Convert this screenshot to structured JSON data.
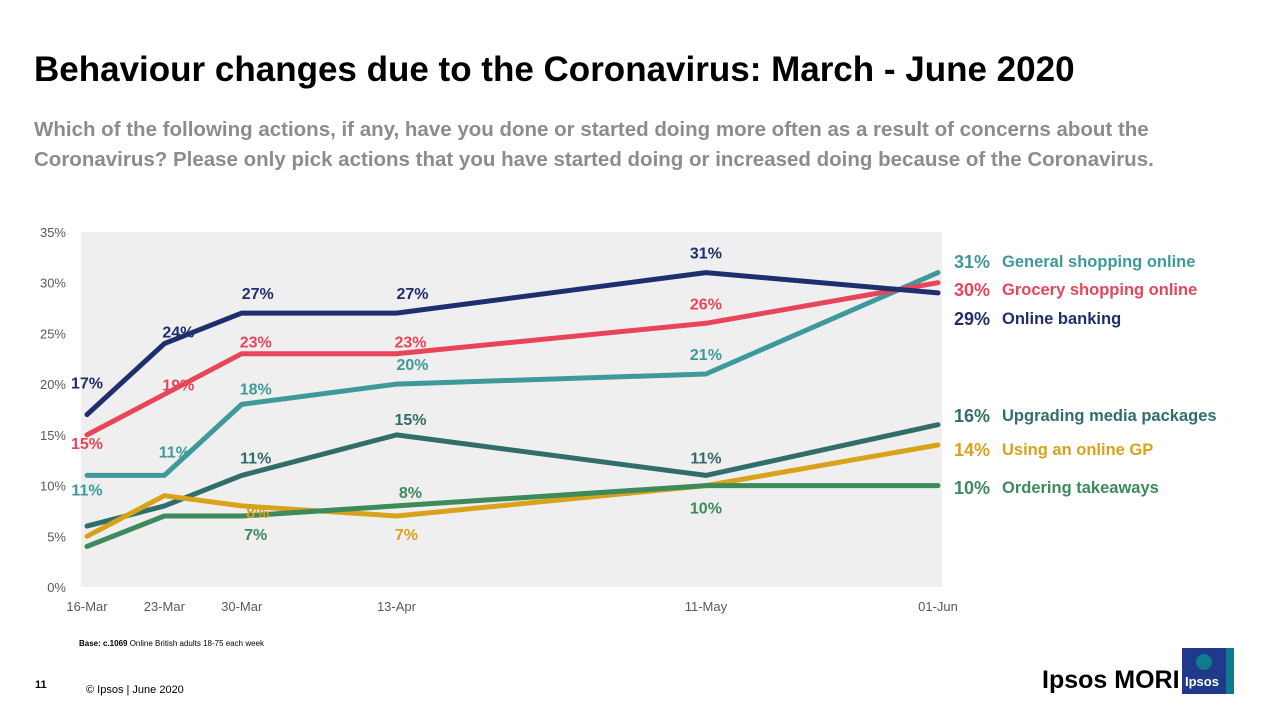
{
  "header": {
    "title": "Behaviour changes due to the Coronavirus: March -  June 2020",
    "subtitle": "Which of the following actions, if any, have you done or started doing more often as a result of concerns about the Coronavirus? Please only pick actions that you have started doing or increased doing because of the Coronavirus."
  },
  "chart_data": {
    "type": "line",
    "title": "",
    "xlabel": "",
    "ylabel": "",
    "x": [
      "16-Mar",
      "23-Mar",
      "30-Mar",
      "13-Apr",
      "11-May",
      "01-Jun"
    ],
    "x_days": [
      0,
      7,
      14,
      28,
      56,
      77
    ],
    "ylim": [
      0,
      35
    ],
    "yticks": [
      0,
      5,
      10,
      15,
      20,
      25,
      30,
      35
    ],
    "y_tick_labels": [
      "0%",
      "5%",
      "10%",
      "15%",
      "20%",
      "25%",
      "30%",
      "35%"
    ],
    "grid": false,
    "legend_position": "right",
    "series": [
      {
        "name": "General shopping online",
        "color": "#3e9a9a",
        "values": [
          11,
          11,
          18,
          20,
          21,
          31
        ],
        "point_labels": [
          "11%",
          "11%",
          "18%",
          "20%",
          "21%",
          ""
        ],
        "end_label": "31%"
      },
      {
        "name": "Grocery shopping online",
        "color": "#e8455a",
        "values": [
          15,
          19,
          23,
          23,
          26,
          30
        ],
        "point_labels": [
          "15%",
          "19%",
          "23%",
          "23%",
          "26%",
          ""
        ],
        "end_label": "30%"
      },
      {
        "name": "Online banking",
        "color": "#1f2f6e",
        "values": [
          17,
          24,
          27,
          27,
          31,
          29
        ],
        "point_labels": [
          "17%",
          "24%",
          "27%",
          "27%",
          "31%",
          ""
        ],
        "end_label": "29%"
      },
      {
        "name": "Upgrading media packages",
        "color": "#2f6e6a",
        "values": [
          6,
          8,
          11,
          15,
          11,
          16
        ],
        "point_labels": [
          "",
          "",
          "11%",
          "15%",
          "11%",
          ""
        ],
        "end_label": "16%"
      },
      {
        "name": "Using an online GP",
        "color": "#d9a21b",
        "values": [
          5,
          9,
          8,
          7,
          10,
          14
        ],
        "point_labels": [
          "",
          "",
          "8%",
          "7%",
          "",
          ""
        ],
        "end_label": "14%"
      },
      {
        "name": "Ordering takeaways",
        "color": "#3d8a5a",
        "values": [
          4,
          7,
          7,
          8,
          10,
          10
        ],
        "point_labels": [
          "",
          "",
          "7%",
          "8%",
          "10%",
          ""
        ],
        "end_label": "10%"
      }
    ]
  },
  "footer": {
    "base_label": "Base: c.1069",
    "base_text": " Online British adults 18-75 each week",
    "page_number": "11",
    "copyright": "© Ipsos |  June 2020",
    "brand": "Ipsos MORI",
    "logo_text": "Ipsos"
  }
}
